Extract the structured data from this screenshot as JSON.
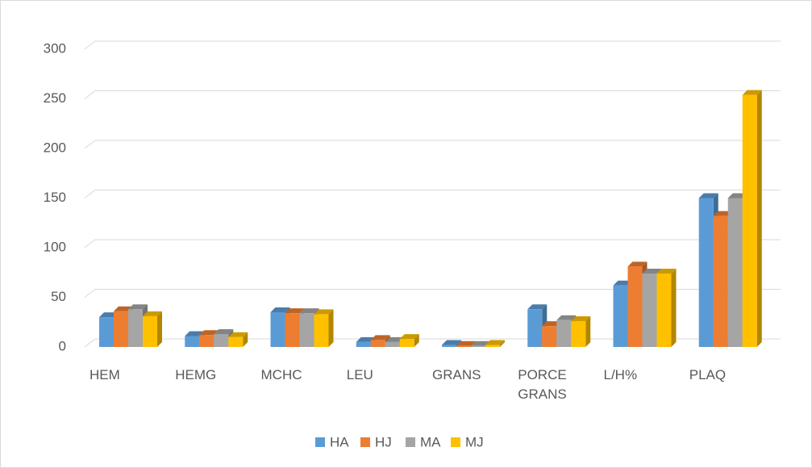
{
  "chart_data": {
    "type": "bar3d",
    "categories": [
      "HEM",
      "HEMG",
      "MCHC",
      "LEU",
      "GRANS",
      "PORCE GRANS",
      "L/H%",
      "PLAQ"
    ],
    "series": [
      {
        "name": "HA",
        "color": "#5b9bd5",
        "values": [
          30,
          11,
          35,
          5,
          2,
          38,
          62,
          150
        ]
      },
      {
        "name": "HJ",
        "color": "#ed7d31",
        "values": [
          36,
          12,
          34,
          7,
          1,
          21,
          81,
          132
        ]
      },
      {
        "name": "MA",
        "color": "#a5a5a5",
        "values": [
          38,
          13,
          34,
          5,
          1,
          27,
          74,
          150
        ]
      },
      {
        "name": "MJ",
        "color": "#ffc000",
        "values": [
          31,
          10,
          33,
          8,
          2,
          26,
          74,
          254
        ]
      }
    ],
    "ylim": [
      0,
      300
    ],
    "yticks": [
      0,
      50,
      100,
      150,
      200,
      250,
      300
    ],
    "grid": true,
    "legend": "bottom"
  }
}
